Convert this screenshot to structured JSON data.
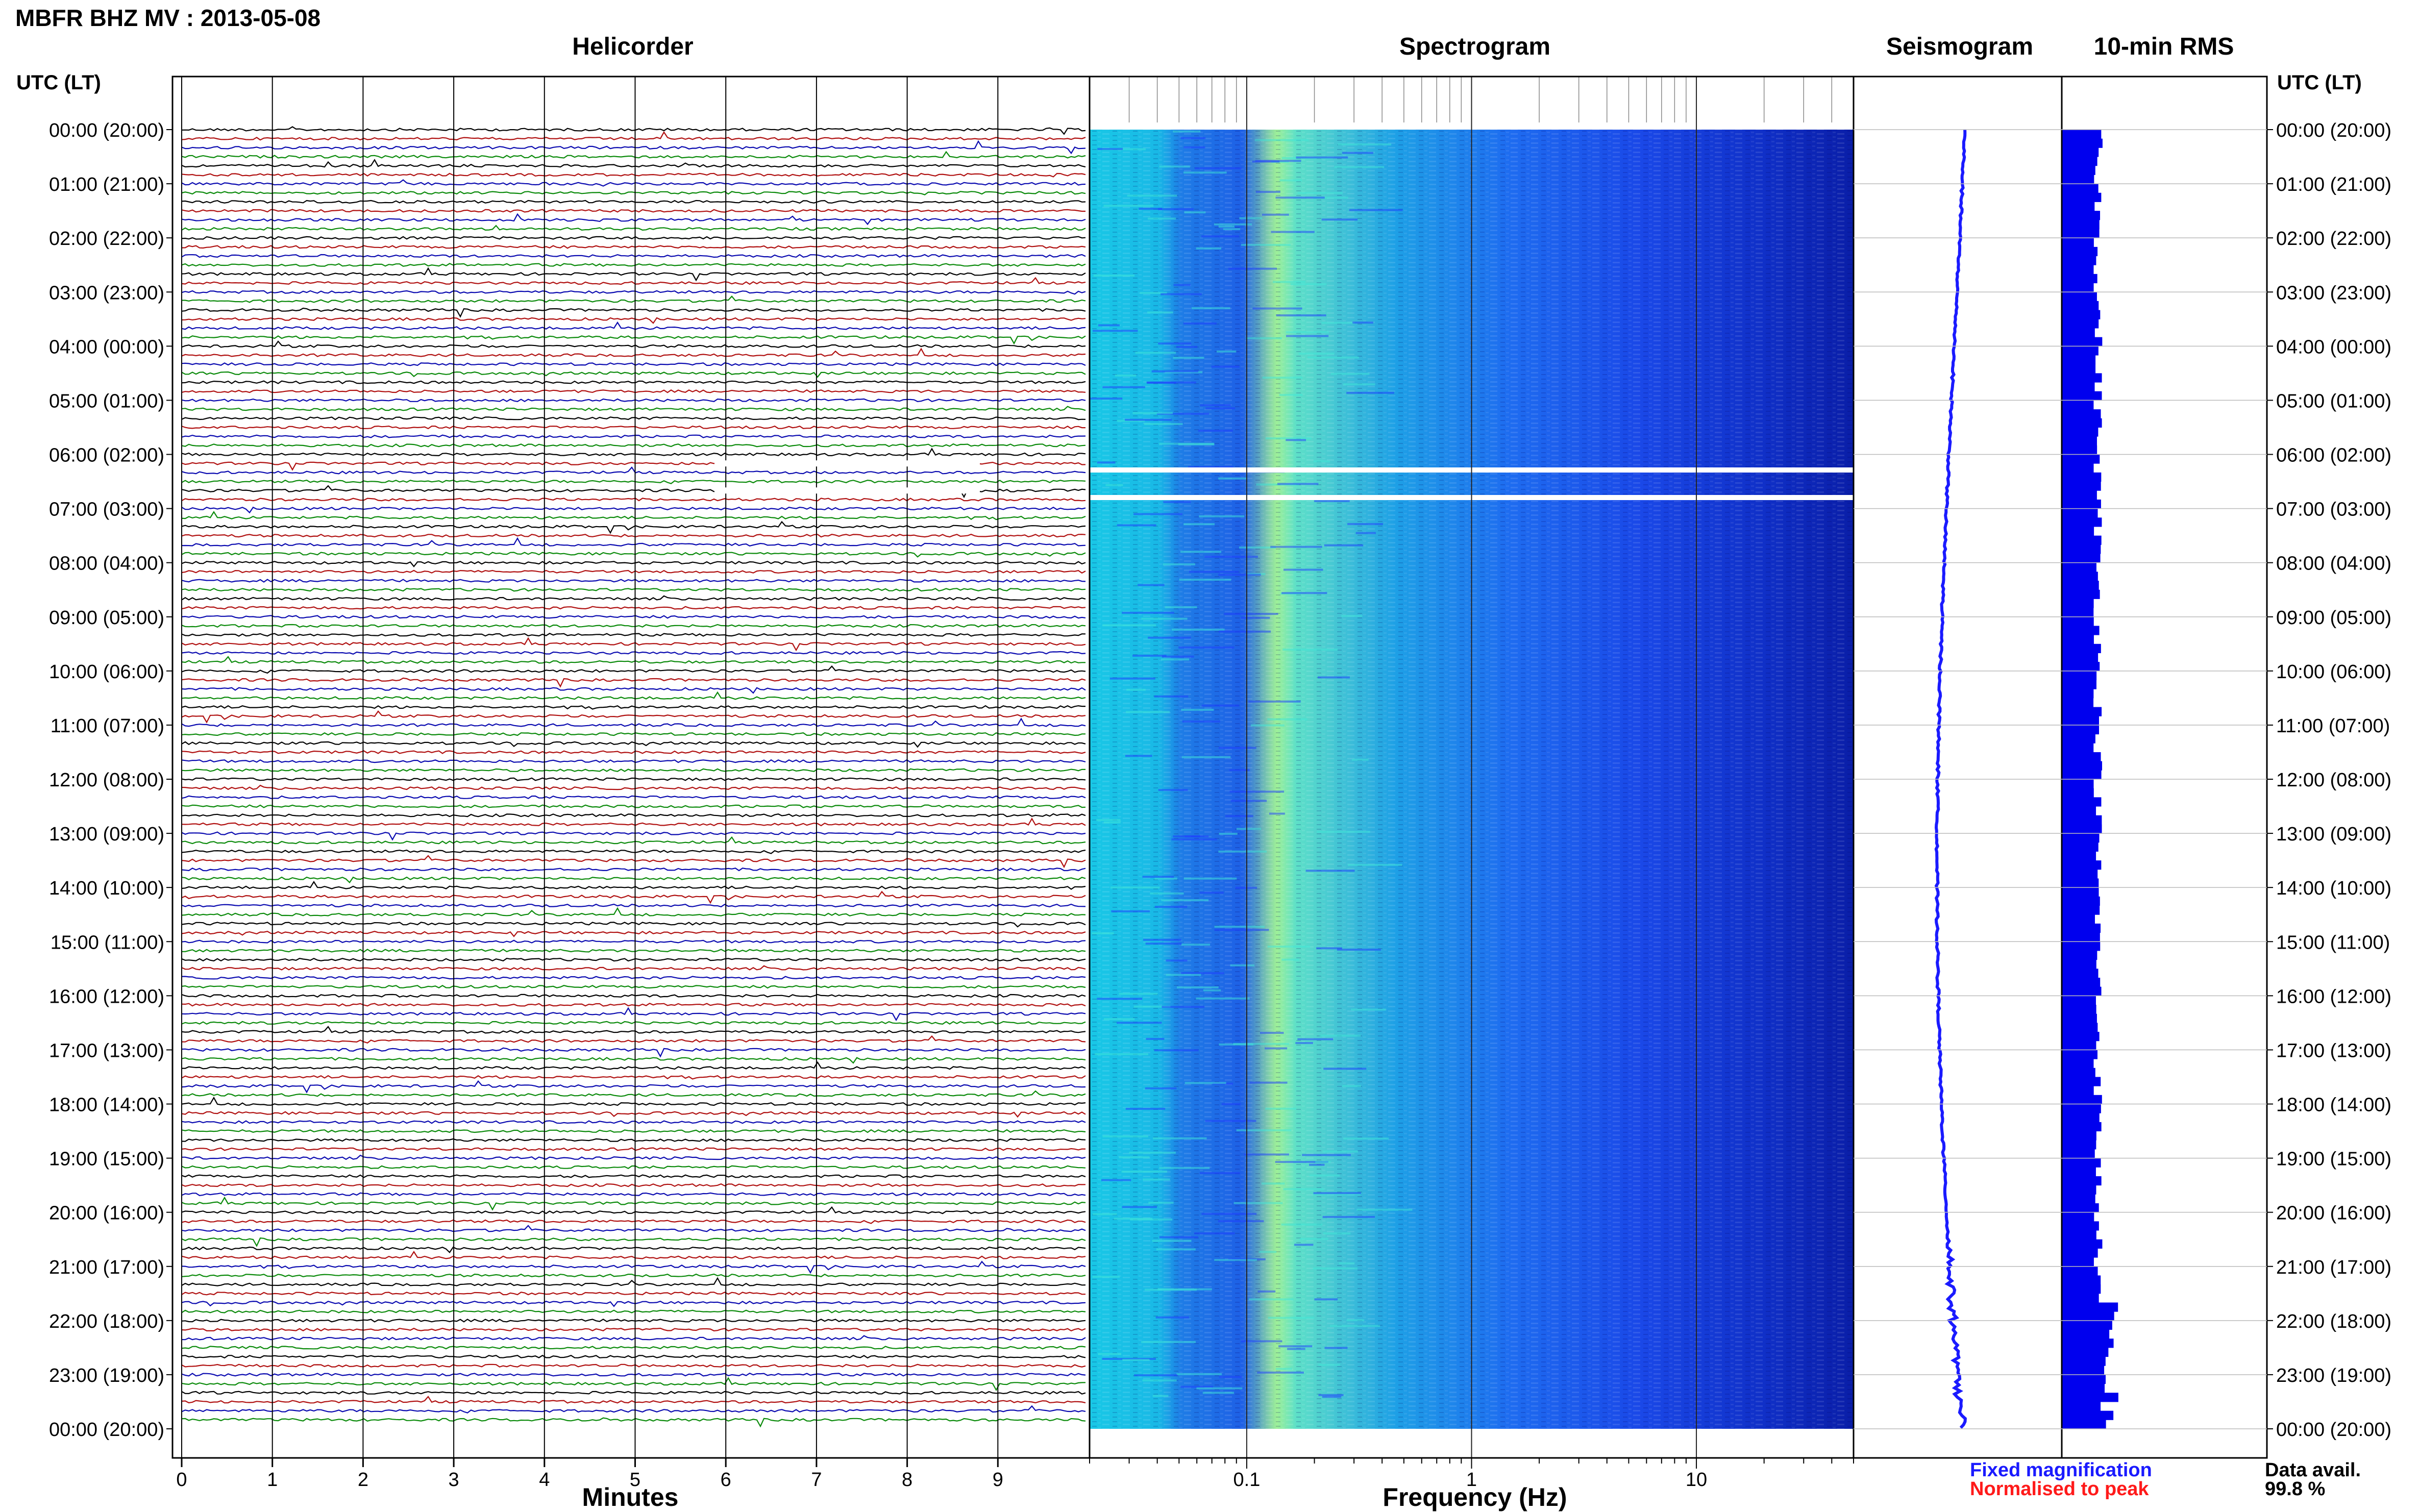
{
  "title": "MBFR BHZ MV : 2013-05-08",
  "panels": {
    "helicorder": "Helicorder",
    "spectrogram": "Spectrogram",
    "seismogram": "Seismogram",
    "rms": "10-min RMS"
  },
  "time_axis_label": "UTC (LT)",
  "time_labels": [
    "00:00 (20:00)",
    "01:00 (21:00)",
    "02:00 (22:00)",
    "03:00 (23:00)",
    "04:00 (00:00)",
    "05:00 (01:00)",
    "06:00 (02:00)",
    "07:00 (03:00)",
    "08:00 (04:00)",
    "09:00 (05:00)",
    "10:00 (06:00)",
    "11:00 (07:00)",
    "12:00 (08:00)",
    "13:00 (09:00)",
    "14:00 (10:00)",
    "15:00 (11:00)",
    "16:00 (12:00)",
    "17:00 (13:00)",
    "18:00 (14:00)",
    "19:00 (15:00)",
    "20:00 (16:00)",
    "21:00 (17:00)",
    "22:00 (18:00)",
    "23:00 (19:00)",
    "00:00 (20:00)"
  ],
  "legend": {
    "fixed": "Fixed magnification",
    "normalised": "Normalised to peak",
    "data_avail_label": "Data avail.",
    "data_avail_value": "99.8 %"
  },
  "colors": {
    "fixed": "#1a1aff",
    "normalised": "#ff1a1a",
    "trace_cycle": [
      "#000000",
      "#b01010",
      "#0a0ab0",
      "#0a8a0a"
    ],
    "rms_bars": "#0000ee",
    "seismogram": "#1a1aff"
  },
  "chart_data": [
    {
      "type": "line",
      "title": "Helicorder",
      "xlabel": "Minutes",
      "x_ticks": [
        "0",
        "1",
        "2",
        "3",
        "4",
        "5",
        "6",
        "7",
        "8",
        "9"
      ],
      "xlim": [
        0,
        10
      ],
      "line_minutes": 10,
      "lines": 144,
      "gap_utc": [
        "06:10-06:20",
        "06:40-06:50"
      ]
    },
    {
      "type": "heatmap",
      "title": "Spectrogram",
      "xlabel": "Frequency (Hz)",
      "x_scale": "log",
      "x_ticks": [
        "0.1",
        "1",
        "10"
      ],
      "xlim": [
        0.02,
        50
      ],
      "colormap": [
        "#00008b",
        "#1e3cff",
        "#00a0ff",
        "#40e0d0",
        "#c8f040"
      ],
      "energy_peak_hz": 0.17
    },
    {
      "type": "line",
      "title": "Seismogram",
      "orientation": "vertical"
    },
    {
      "type": "bar",
      "title": "10-min RMS",
      "orientation": "horizontal",
      "bins": 144,
      "data_avail_percent": 99.8
    }
  ]
}
